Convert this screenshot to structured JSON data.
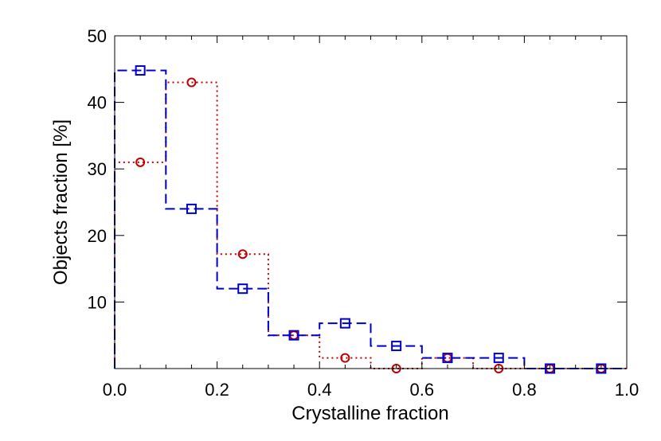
{
  "chart_data": {
    "type": "histogram-step",
    "xlabel": "Crystalline fraction",
    "ylabel": "Objects fraction [%]",
    "xlim": [
      0.0,
      1.0
    ],
    "ylim": [
      0,
      50
    ],
    "x_ticks": [
      0.0,
      0.2,
      0.4,
      0.6,
      0.8,
      1.0
    ],
    "x_tick_labels": [
      "0.0",
      "0.2",
      "0.4",
      "0.6",
      "0.8",
      "1.0"
    ],
    "y_ticks": [
      10,
      20,
      30,
      40,
      50
    ],
    "y_tick_labels": [
      "10",
      "20",
      "30",
      "40",
      "50"
    ],
    "bin_edges": [
      0.0,
      0.1,
      0.2,
      0.3,
      0.4,
      0.5,
      0.6,
      0.7,
      0.8,
      0.9,
      1.0
    ],
    "bin_centers": [
      0.05,
      0.15,
      0.25,
      0.35,
      0.45,
      0.55,
      0.65,
      0.75,
      0.85,
      0.95
    ],
    "grid": false,
    "series": [
      {
        "marker": "circle",
        "line_style": "dotted",
        "color": "#c00000",
        "values": [
          31,
          43,
          17.2,
          5,
          1.6,
          0,
          1.6,
          0,
          0,
          0
        ]
      },
      {
        "marker": "square",
        "line_style": "dashed",
        "color": "#0000cc",
        "values": [
          44.8,
          24,
          12,
          5,
          6.8,
          3.4,
          1.6,
          1.6,
          0,
          0
        ]
      }
    ]
  }
}
